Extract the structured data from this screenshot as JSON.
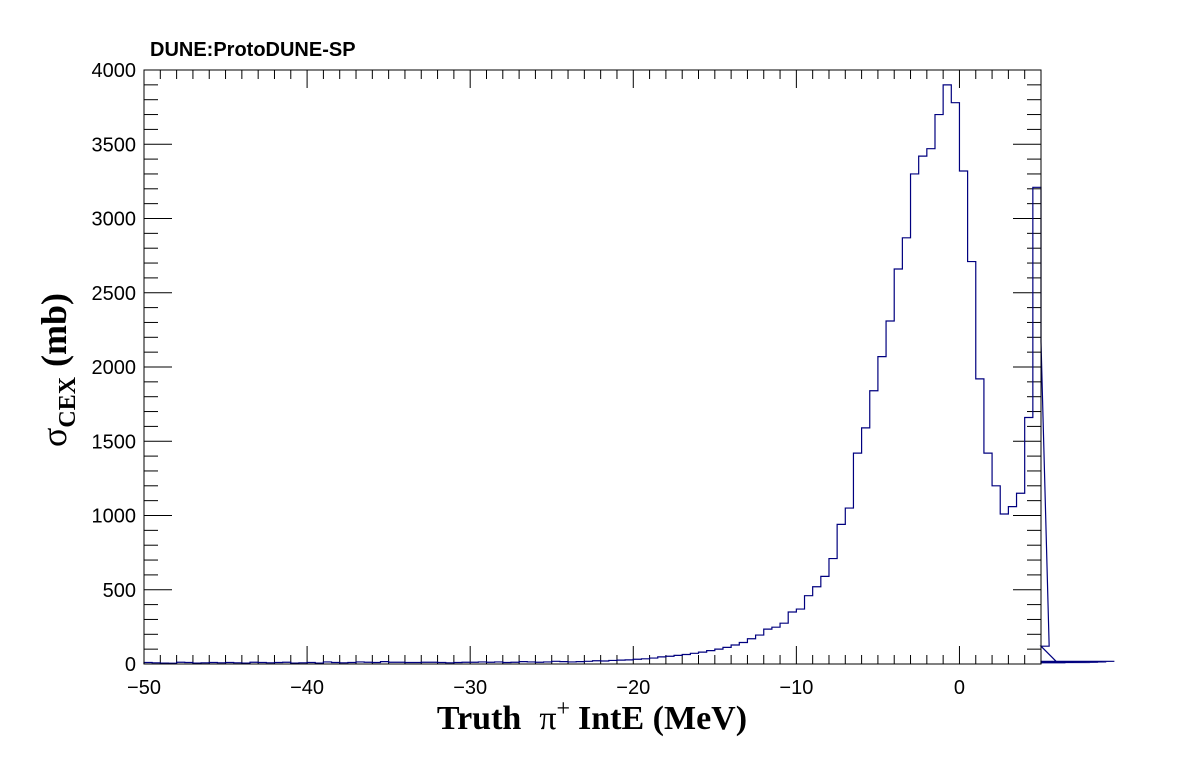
{
  "header": {
    "experiment_label": "DUNE:ProtoDUNE-SP"
  },
  "chart_data": {
    "type": "bar",
    "style": "step-histogram",
    "line_color": "#00007f",
    "x_axis": {
      "label_prefix": "Truth",
      "label_particle": "π",
      "label_charge": "+",
      "label_suffix": "IntE (MeV)",
      "xlim": [
        -50,
        5
      ],
      "ticks": [
        -50,
        -40,
        -30,
        -20,
        -10,
        0
      ],
      "tick_labels": [
        "−50",
        "−40",
        "−30",
        "−20",
        "−10",
        "0"
      ]
    },
    "y_axis": {
      "label_symbol": "σ",
      "label_subscript": "CEX",
      "label_unit": "(mb)",
      "ylim": [
        0,
        4000
      ],
      "ticks": [
        0,
        500,
        1000,
        1500,
        2000,
        2500,
        3000,
        3500,
        4000
      ],
      "tick_labels": [
        "0",
        "500",
        "1000",
        "1500",
        "2000",
        "2500",
        "3000",
        "3500",
        "4000"
      ]
    },
    "bin_width": 0.5,
    "bin_edges_start": -50,
    "values": [
      10,
      8,
      6,
      5,
      12,
      10,
      6,
      8,
      10,
      8,
      10,
      8,
      6,
      12,
      10,
      8,
      10,
      12,
      6,
      8,
      10,
      6,
      14,
      10,
      8,
      10,
      14,
      12,
      10,
      16,
      12,
      12,
      10,
      10,
      12,
      12,
      10,
      8,
      10,
      12,
      12,
      14,
      12,
      14,
      10,
      12,
      16,
      14,
      12,
      14,
      18,
      16,
      14,
      16,
      18,
      22,
      20,
      24,
      26,
      28,
      32,
      35,
      40,
      48,
      52,
      58,
      64,
      72,
      80,
      90,
      100,
      112,
      128,
      145,
      170,
      195,
      235,
      248,
      275,
      350,
      370,
      460,
      520,
      590,
      710,
      940,
      1050,
      1420,
      1590,
      1840,
      2070,
      2310,
      2660,
      2870,
      3300,
      3420,
      3470,
      3700,
      3900,
      3780,
      3320,
      2710,
      1920,
      1420,
      1200,
      1010,
      1060,
      1150,
      1660,
      3210,
      2170,
      120,
      10,
      8,
      12,
      10,
      10,
      12,
      14,
      18
    ]
  }
}
